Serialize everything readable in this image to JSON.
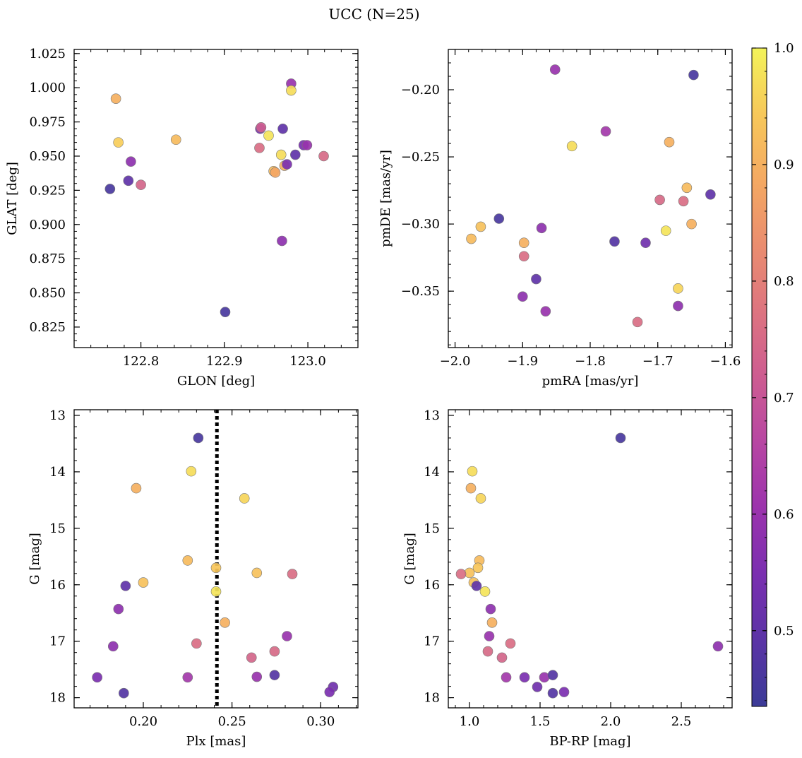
{
  "title": "UCC (N=25)",
  "colorbar": {
    "range": [
      0.435,
      1.0
    ],
    "ticks": [
      0.5,
      0.6,
      0.7,
      0.8,
      0.9,
      1.0
    ],
    "tick_labels": [
      "0.5",
      "0.6",
      "0.7",
      "0.8",
      "0.9",
      "1.0"
    ],
    "colormap": "plasma"
  },
  "chart_data": [
    {
      "type": "scatter",
      "xlabel": "GLON [deg]",
      "ylabel": "GLAT [deg]",
      "xlim": [
        122.72,
        123.06
      ],
      "ylim": [
        0.81,
        1.028
      ],
      "xticks": [
        122.8,
        122.9,
        123.0
      ],
      "xtick_labels": [
        "122.8",
        "122.9",
        "123.0"
      ],
      "yticks": [
        0.825,
        0.85,
        0.875,
        0.9,
        0.925,
        0.95,
        0.975,
        1.0,
        1.025
      ],
      "ytick_labels": [
        "0.825",
        "0.850",
        "0.875",
        "0.900",
        "0.925",
        "0.950",
        "0.975",
        "1.000",
        "1.025"
      ],
      "points": [
        {
          "x": 122.763,
          "y": 0.926,
          "c": 0.46
        },
        {
          "x": 122.77,
          "y": 0.992,
          "c": 0.9
        },
        {
          "x": 122.773,
          "y": 0.96,
          "c": 0.95
        },
        {
          "x": 122.785,
          "y": 0.932,
          "c": 0.5
        },
        {
          "x": 122.788,
          "y": 0.946,
          "c": 0.58
        },
        {
          "x": 122.8,
          "y": 0.929,
          "c": 0.74
        },
        {
          "x": 122.842,
          "y": 0.962,
          "c": 0.92
        },
        {
          "x": 122.901,
          "y": 0.836,
          "c": 0.46
        },
        {
          "x": 122.942,
          "y": 0.956,
          "c": 0.76
        },
        {
          "x": 122.943,
          "y": 0.97,
          "c": 0.55
        },
        {
          "x": 122.944,
          "y": 0.971,
          "c": 0.72
        },
        {
          "x": 122.953,
          "y": 0.965,
          "c": 0.98
        },
        {
          "x": 122.959,
          "y": 0.939,
          "c": 0.92
        },
        {
          "x": 122.961,
          "y": 0.938,
          "c": 0.88
        },
        {
          "x": 122.968,
          "y": 0.951,
          "c": 0.97
        },
        {
          "x": 122.97,
          "y": 0.97,
          "c": 0.5
        },
        {
          "x": 122.969,
          "y": 0.888,
          "c": 0.58
        },
        {
          "x": 122.972,
          "y": 0.943,
          "c": 0.9
        },
        {
          "x": 122.975,
          "y": 0.944,
          "c": 0.55
        },
        {
          "x": 122.98,
          "y": 1.003,
          "c": 0.6
        },
        {
          "x": 122.98,
          "y": 0.998,
          "c": 0.97
        },
        {
          "x": 122.985,
          "y": 0.951,
          "c": 0.5
        },
        {
          "x": 122.995,
          "y": 0.958,
          "c": 0.55
        },
        {
          "x": 122.999,
          "y": 0.958,
          "c": 0.6
        },
        {
          "x": 123.019,
          "y": 0.95,
          "c": 0.75
        }
      ]
    },
    {
      "type": "scatter",
      "xlabel": "pmRA [mas/yr]",
      "ylabel": "pmDE [mas/yr]",
      "xlim": [
        -2.01,
        -1.59
      ],
      "ylim": [
        -0.392,
        -0.17
      ],
      "xticks": [
        -2.0,
        -1.9,
        -1.8,
        -1.7,
        -1.6
      ],
      "xtick_labels": [
        "−2.0",
        "−1.9",
        "−1.8",
        "−1.7",
        "−1.6"
      ],
      "yticks": [
        -0.35,
        -0.3,
        -0.25,
        -0.2
      ],
      "ytick_labels": [
        "−0.35",
        "−0.30",
        "−0.25",
        "−0.20"
      ],
      "points": [
        {
          "x": -1.976,
          "y": -0.311,
          "c": 0.92
        },
        {
          "x": -1.962,
          "y": -0.302,
          "c": 0.93
        },
        {
          "x": -1.935,
          "y": -0.296,
          "c": 0.46
        },
        {
          "x": -1.898,
          "y": -0.314,
          "c": 0.9
        },
        {
          "x": -1.898,
          "y": -0.324,
          "c": 0.76
        },
        {
          "x": -1.9,
          "y": -0.354,
          "c": 0.58
        },
        {
          "x": -1.88,
          "y": -0.341,
          "c": 0.5
        },
        {
          "x": -1.872,
          "y": -0.303,
          "c": 0.58
        },
        {
          "x": -1.866,
          "y": -0.365,
          "c": 0.6
        },
        {
          "x": -1.852,
          "y": -0.185,
          "c": 0.6
        },
        {
          "x": -1.827,
          "y": -0.242,
          "c": 0.97
        },
        {
          "x": -1.777,
          "y": -0.231,
          "c": 0.62
        },
        {
          "x": -1.764,
          "y": -0.313,
          "c": 0.48
        },
        {
          "x": -1.73,
          "y": -0.373,
          "c": 0.76
        },
        {
          "x": -1.718,
          "y": -0.314,
          "c": 0.53
        },
        {
          "x": -1.697,
          "y": -0.282,
          "c": 0.75
        },
        {
          "x": -1.688,
          "y": -0.305,
          "c": 0.98
        },
        {
          "x": -1.683,
          "y": -0.239,
          "c": 0.9
        },
        {
          "x": -1.67,
          "y": -0.348,
          "c": 0.96
        },
        {
          "x": -1.67,
          "y": -0.361,
          "c": 0.58
        },
        {
          "x": -1.662,
          "y": -0.283,
          "c": 0.76
        },
        {
          "x": -1.657,
          "y": -0.273,
          "c": 0.92
        },
        {
          "x": -1.65,
          "y": -0.3,
          "c": 0.9
        },
        {
          "x": -1.647,
          "y": -0.189,
          "c": 0.46
        },
        {
          "x": -1.622,
          "y": -0.278,
          "c": 0.5
        }
      ]
    },
    {
      "type": "scatter",
      "xlabel": "Plx [mas]",
      "ylabel": "G [mag]",
      "xlim": [
        0.161,
        0.321
      ],
      "ylim": [
        18.18,
        12.9
      ],
      "y_inverted": true,
      "xticks": [
        0.2,
        0.25,
        0.3
      ],
      "xtick_labels": [
        "0.20",
        "0.25",
        "0.30"
      ],
      "yticks": [
        13,
        14,
        15,
        16,
        17,
        18
      ],
      "ytick_labels": [
        "13",
        "14",
        "15",
        "16",
        "17",
        "18"
      ],
      "vline": {
        "x": 0.2415,
        "style": "dotted"
      },
      "points": [
        {
          "x": 0.231,
          "y": 13.4,
          "c": 0.46
        },
        {
          "x": 0.227,
          "y": 13.99,
          "c": 0.97
        },
        {
          "x": 0.196,
          "y": 14.29,
          "c": 0.9
        },
        {
          "x": 0.257,
          "y": 14.47,
          "c": 0.96
        },
        {
          "x": 0.225,
          "y": 15.57,
          "c": 0.92
        },
        {
          "x": 0.241,
          "y": 15.7,
          "c": 0.94
        },
        {
          "x": 0.264,
          "y": 15.79,
          "c": 0.93
        },
        {
          "x": 0.284,
          "y": 15.81,
          "c": 0.76
        },
        {
          "x": 0.2,
          "y": 15.96,
          "c": 0.93
        },
        {
          "x": 0.19,
          "y": 16.02,
          "c": 0.5
        },
        {
          "x": 0.241,
          "y": 16.12,
          "c": 0.98
        },
        {
          "x": 0.186,
          "y": 16.43,
          "c": 0.58
        },
        {
          "x": 0.246,
          "y": 16.67,
          "c": 0.9
        },
        {
          "x": 0.281,
          "y": 16.91,
          "c": 0.6
        },
        {
          "x": 0.23,
          "y": 17.04,
          "c": 0.76
        },
        {
          "x": 0.183,
          "y": 17.09,
          "c": 0.58
        },
        {
          "x": 0.274,
          "y": 17.18,
          "c": 0.75
        },
        {
          "x": 0.261,
          "y": 17.29,
          "c": 0.74
        },
        {
          "x": 0.174,
          "y": 17.64,
          "c": 0.55
        },
        {
          "x": 0.225,
          "y": 17.64,
          "c": 0.62
        },
        {
          "x": 0.264,
          "y": 17.63,
          "c": 0.6
        },
        {
          "x": 0.274,
          "y": 17.6,
          "c": 0.48
        },
        {
          "x": 0.189,
          "y": 17.92,
          "c": 0.48
        },
        {
          "x": 0.307,
          "y": 17.81,
          "c": 0.53
        },
        {
          "x": 0.305,
          "y": 17.9,
          "c": 0.55
        }
      ]
    },
    {
      "type": "scatter",
      "xlabel": "BP-RP [mag]",
      "ylabel": "G [mag]",
      "xlim": [
        0.85,
        2.86
      ],
      "ylim": [
        18.18,
        12.9
      ],
      "y_inverted": true,
      "xticks": [
        1.0,
        1.5,
        2.0,
        2.5
      ],
      "xtick_labels": [
        "1.0",
        "1.5",
        "2.0",
        "2.5"
      ],
      "yticks": [
        13,
        14,
        15,
        16,
        17,
        18
      ],
      "ytick_labels": [
        "13",
        "14",
        "15",
        "16",
        "17",
        "18"
      ],
      "points": [
        {
          "x": 2.07,
          "y": 13.4,
          "c": 0.46
        },
        {
          "x": 1.02,
          "y": 13.99,
          "c": 0.97
        },
        {
          "x": 1.01,
          "y": 14.29,
          "c": 0.9
        },
        {
          "x": 1.08,
          "y": 14.47,
          "c": 0.96
        },
        {
          "x": 1.07,
          "y": 15.57,
          "c": 0.92
        },
        {
          "x": 1.06,
          "y": 15.7,
          "c": 0.94
        },
        {
          "x": 1.0,
          "y": 15.79,
          "c": 0.93
        },
        {
          "x": 0.94,
          "y": 15.81,
          "c": 0.76
        },
        {
          "x": 1.03,
          "y": 15.96,
          "c": 0.93
        },
        {
          "x": 1.05,
          "y": 16.02,
          "c": 0.5
        },
        {
          "x": 1.11,
          "y": 16.12,
          "c": 0.98
        },
        {
          "x": 1.15,
          "y": 16.43,
          "c": 0.58
        },
        {
          "x": 1.16,
          "y": 16.67,
          "c": 0.9
        },
        {
          "x": 1.14,
          "y": 16.91,
          "c": 0.6
        },
        {
          "x": 1.29,
          "y": 17.04,
          "c": 0.76
        },
        {
          "x": 2.76,
          "y": 17.09,
          "c": 0.58
        },
        {
          "x": 1.13,
          "y": 17.18,
          "c": 0.75
        },
        {
          "x": 1.23,
          "y": 17.29,
          "c": 0.74
        },
        {
          "x": 1.26,
          "y": 17.64,
          "c": 0.62
        },
        {
          "x": 1.39,
          "y": 17.64,
          "c": 0.55
        },
        {
          "x": 1.53,
          "y": 17.64,
          "c": 0.6
        },
        {
          "x": 1.59,
          "y": 17.6,
          "c": 0.48
        },
        {
          "x": 1.48,
          "y": 17.81,
          "c": 0.53
        },
        {
          "x": 1.59,
          "y": 17.92,
          "c": 0.48
        },
        {
          "x": 1.67,
          "y": 17.9,
          "c": 0.55
        }
      ]
    }
  ]
}
